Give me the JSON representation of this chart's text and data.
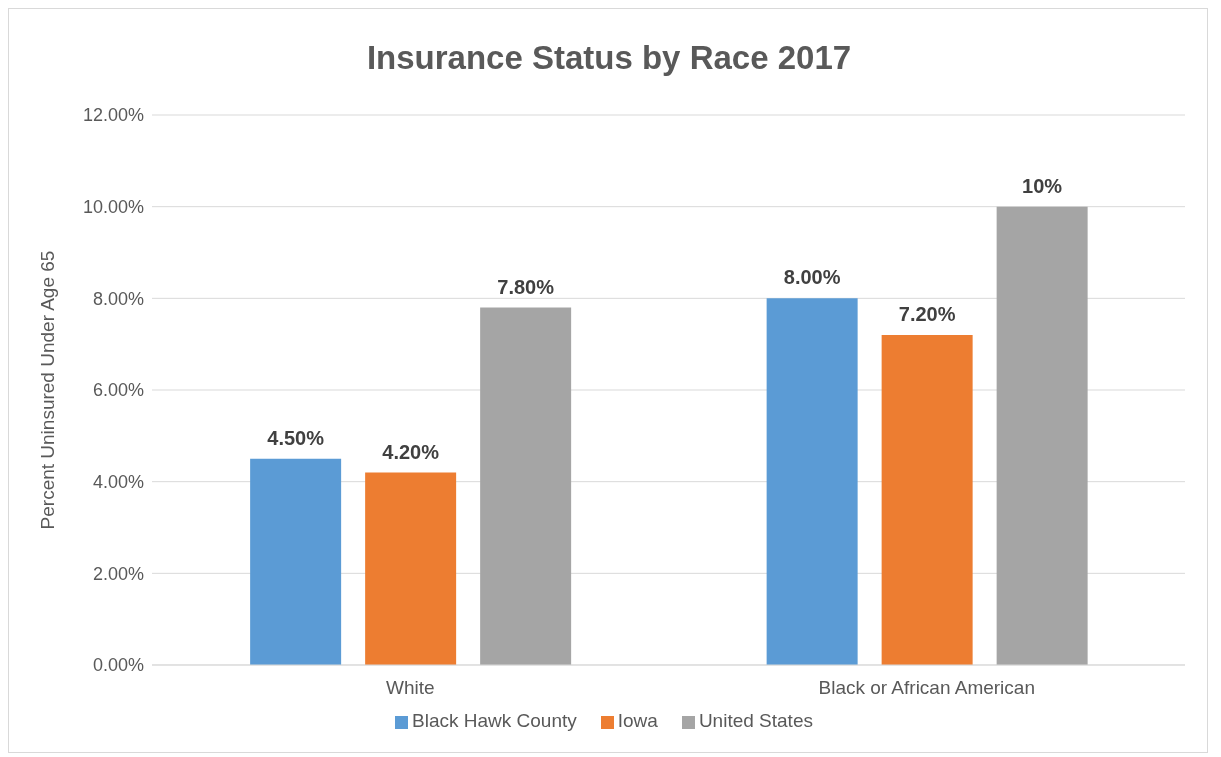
{
  "chart_data": {
    "type": "bar",
    "title": "Insurance Status by Race 2017",
    "ylabel": "Percent Uninsured Under Age 65",
    "categories": [
      "White",
      "Black or African American"
    ],
    "series": [
      {
        "name": "Black Hawk County",
        "color": "#5b9bd5",
        "values": [
          4.5,
          8.0
        ],
        "value_labels": [
          "4.50%",
          "8.00%"
        ]
      },
      {
        "name": "Iowa",
        "color": "#ed7d31",
        "values": [
          4.2,
          7.2
        ],
        "value_labels": [
          "4.20%",
          "7.20%"
        ]
      },
      {
        "name": "United States",
        "color": "#a5a5a5",
        "values": [
          7.8,
          10
        ],
        "value_labels": [
          "7.80%",
          "10%"
        ]
      }
    ],
    "ylim": [
      0,
      12
    ],
    "yticks": [
      {
        "value": 0,
        "label": "0.00%"
      },
      {
        "value": 2,
        "label": "2.00%"
      },
      {
        "value": 4,
        "label": "4.00%"
      },
      {
        "value": 6,
        "label": "6.00%"
      },
      {
        "value": 8,
        "label": "8.00%"
      },
      {
        "value": 10,
        "label": "10.00%"
      },
      {
        "value": 12,
        "label": "12.00%"
      }
    ],
    "grid": "y",
    "legend": "bottom"
  }
}
